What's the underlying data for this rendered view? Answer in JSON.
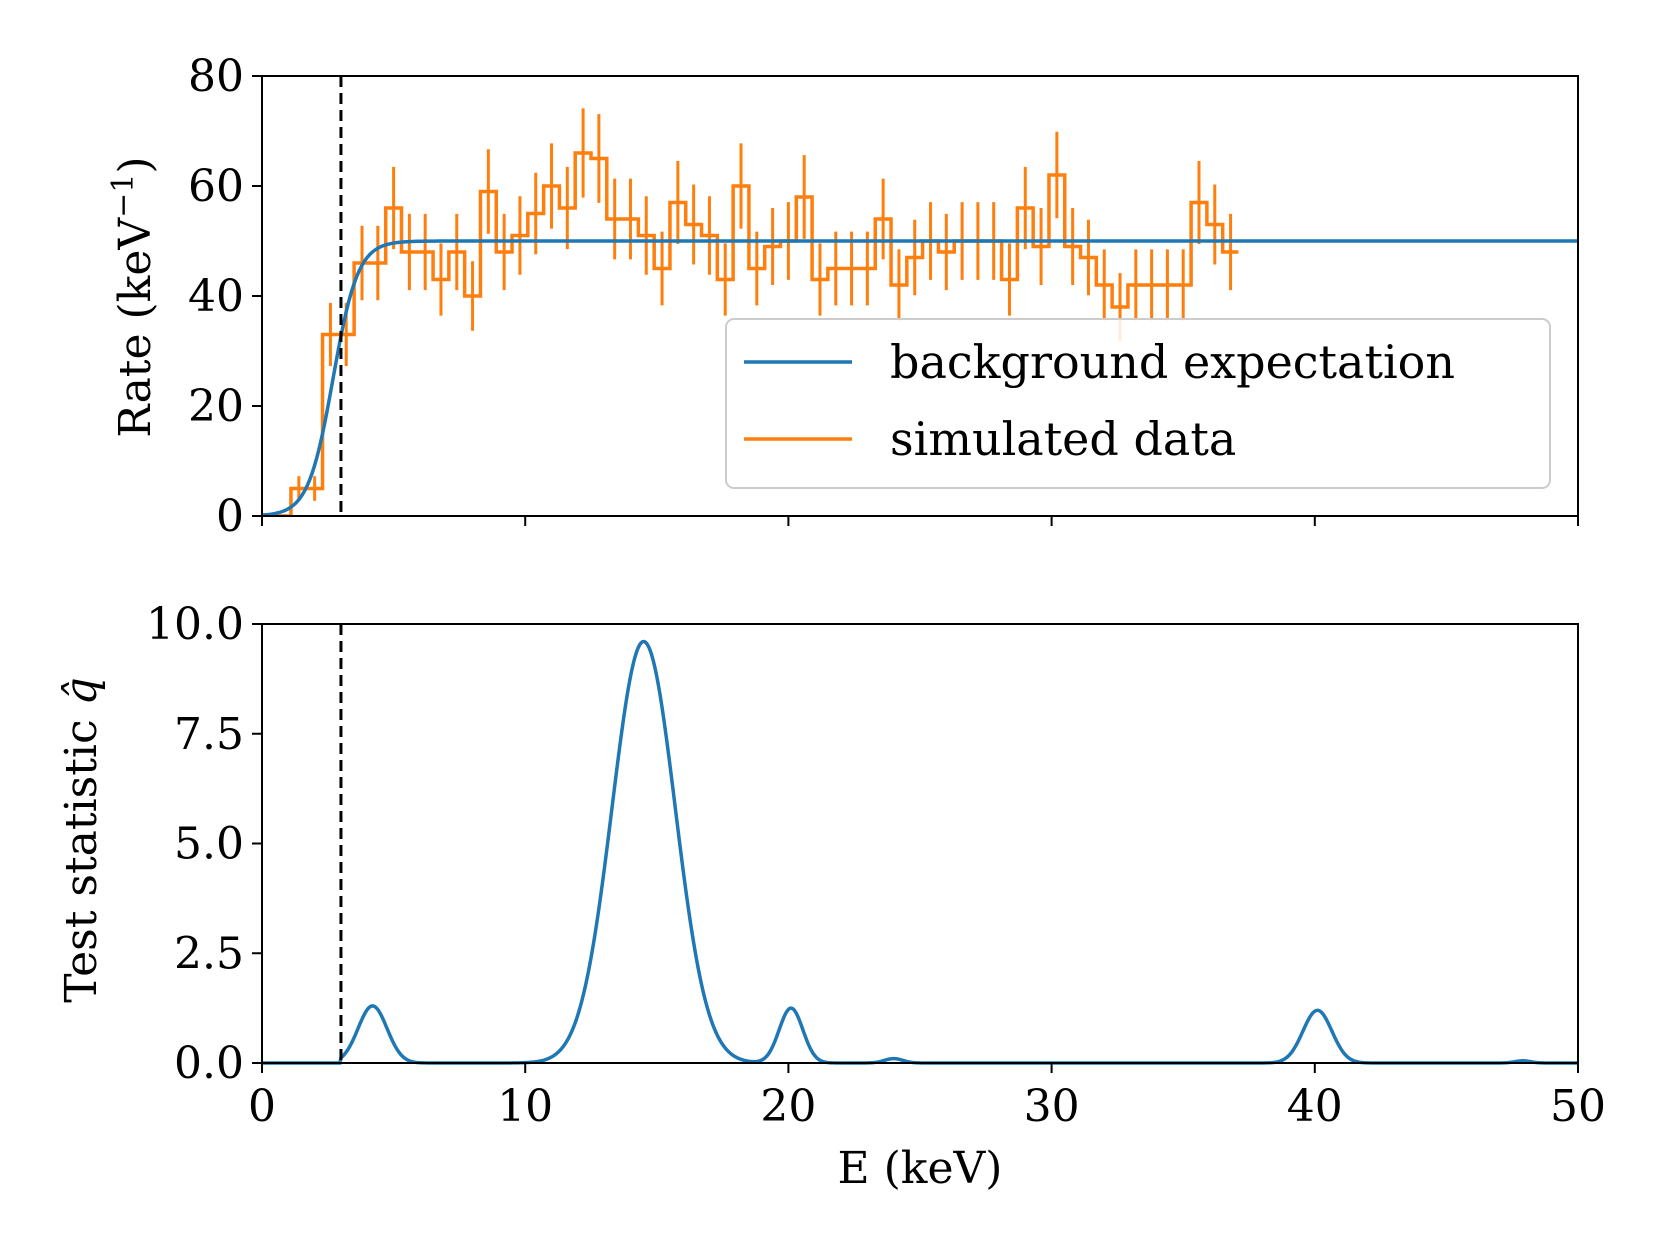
{
  "chart_data": [
    {
      "type": "line",
      "panel": "top",
      "xlabel": "",
      "ylabel": "Rate (keV",
      "ylabel_superscript": "−1",
      "ylabel_close": ")",
      "xlim": [
        0,
        50
      ],
      "ylim": [
        0,
        80
      ],
      "yticks": [
        0,
        20,
        40,
        60,
        80
      ],
      "ytick_labels": [
        "0",
        "20",
        "40",
        "60",
        "80"
      ],
      "xticks": [
        0,
        10,
        20,
        30,
        40,
        50
      ],
      "threshold_line_x": 3,
      "legend": {
        "position": "right",
        "entries": [
          "background expectation",
          "simulated data"
        ]
      },
      "series": [
        {
          "name": "background expectation",
          "kind": "smooth-step",
          "color": "#1f77b4",
          "plateau": 50,
          "midpoint": 2.7,
          "width": 0.8
        },
        {
          "name": "simulated data",
          "kind": "step-with-errorbars",
          "color": "#ff7f0e",
          "bin_width": 0.6,
          "x_start": 0.5,
          "values": [
            0,
            5,
            5,
            33,
            33,
            46,
            46,
            56,
            48,
            48,
            43,
            48,
            40,
            59,
            48,
            51,
            55,
            60,
            56,
            66,
            65,
            54,
            54,
            51,
            45,
            57,
            53,
            51,
            43,
            60,
            45,
            49,
            50,
            58,
            43,
            45,
            45,
            45,
            54,
            42,
            47,
            50,
            48,
            50,
            50,
            50,
            43,
            56,
            49,
            62,
            49,
            47,
            42,
            38,
            42,
            42,
            42,
            42,
            57,
            53,
            48
          ]
        }
      ]
    },
    {
      "type": "line",
      "panel": "bottom",
      "xlabel": "E (keV)",
      "ylabel": "Test statistic ",
      "ylabel_symbol": "q̂",
      "xlim": [
        0,
        50
      ],
      "ylim": [
        0,
        10
      ],
      "xticks": [
        0,
        10,
        20,
        30,
        40,
        50
      ],
      "xtick_labels": [
        "0",
        "10",
        "20",
        "30",
        "40",
        "50"
      ],
      "yticks": [
        0,
        2.5,
        5,
        7.5,
        10
      ],
      "ytick_labels": [
        "0.0",
        "2.5",
        "5.0",
        "7.5",
        "10.0"
      ],
      "threshold_line_x": 3,
      "series": [
        {
          "name": "test statistic",
          "color": "#1f77b4",
          "peaks": [
            {
              "center": 4.2,
              "height": 1.3,
              "sigma": 0.55
            },
            {
              "center": 14.5,
              "height": 9.6,
              "sigma": 1.2
            },
            {
              "center": 20.1,
              "height": 1.25,
              "sigma": 0.45
            },
            {
              "center": 24.0,
              "height": 0.1,
              "sigma": 0.35
            },
            {
              "center": 40.1,
              "height": 1.2,
              "sigma": 0.55
            },
            {
              "center": 47.9,
              "height": 0.05,
              "sigma": 0.3
            }
          ]
        }
      ]
    }
  ]
}
